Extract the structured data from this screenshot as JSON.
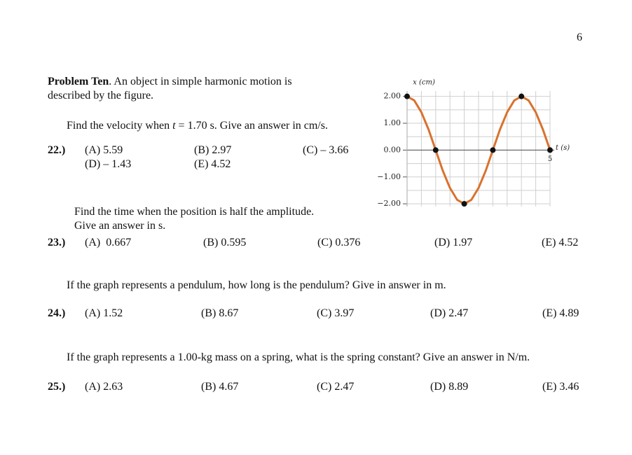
{
  "page_number": "6",
  "problem": {
    "title": "Problem Ten",
    "intro_lines": [
      ". An object in simple harmonic motion is",
      "described by the figure."
    ]
  },
  "figure": {
    "chart_data": {
      "type": "line",
      "x_label": "t (s)",
      "y_label": "x (cm)",
      "x": [
        0,
        0.25,
        0.5,
        0.75,
        1,
        1.25,
        1.5,
        1.75,
        2,
        2.25,
        2.5,
        2.75,
        3,
        3.25,
        3.5,
        3.75,
        4,
        4.25,
        4.5,
        4.75,
        5
      ],
      "series": [
        {
          "color": "#d9722e",
          "values": [
            2,
            1.85,
            1.41,
            0.77,
            0,
            -0.77,
            -1.41,
            -1.85,
            -2,
            -1.85,
            -1.41,
            -0.77,
            0,
            0.77,
            1.41,
            1.85,
            2,
            1.85,
            1.41,
            0.77,
            0
          ]
        }
      ],
      "markers": {
        "color": "#111111",
        "x": [
          0,
          1,
          2,
          3,
          4,
          5
        ],
        "values": [
          2,
          0,
          -2,
          0,
          2,
          0
        ]
      },
      "xlim": [
        0,
        5
      ],
      "ylim": [
        -2.1,
        2.2
      ],
      "xticks": [
        5
      ],
      "yticks": [
        {
          "value": 2,
          "label": "2.00"
        },
        {
          "value": 1,
          "label": "1.00"
        },
        {
          "value": 0,
          "label": "0.00"
        },
        {
          "value": -1,
          "label": "−1.00"
        },
        {
          "value": -2,
          "label": "−2.00"
        }
      ],
      "x_grid": [
        0,
        0.5,
        1,
        1.5,
        2,
        2.5,
        3,
        3.5,
        4,
        4.5,
        5
      ],
      "y_grid": [
        -2,
        -1.5,
        -1,
        -0.5,
        0.5,
        1,
        1.5,
        2
      ]
    }
  },
  "questions": [
    {
      "number": "22.)",
      "prompt_lines": [
        [
          "Find the velocity when ",
          "t",
          " = 1.70 s. Give an answer in cm/s."
        ]
      ],
      "choices": [
        "(A) 5.59",
        "(B) 2.97",
        "(C) – 3.66",
        "(D) – 1.43",
        "(E) 4.52"
      ]
    },
    {
      "number": "23.)",
      "prompt_lines": [
        [
          "Find the time when the position is half the amplitude."
        ],
        [
          "Give an answer in s."
        ]
      ],
      "choices": [
        "(A)  0.667",
        "(B) 0.595",
        "(C) 0.376",
        "(D) 1.97",
        "(E) 4.52"
      ]
    },
    {
      "number": "24.)",
      "prompt_lines": [
        [
          "If the graph represents a pendulum, how long is the pendulum? Give in answer in m."
        ]
      ],
      "choices": [
        "(A) 1.52",
        "(B) 8.67",
        "(C) 3.97",
        "(D) 2.47",
        "(E) 4.89"
      ]
    },
    {
      "number": "25.)",
      "prompt_lines": [
        [
          "If the graph represents a 1.00-kg mass on a spring, what is the spring constant? Give an answer in N/m."
        ]
      ],
      "choices": [
        "(A) 2.63",
        "(B) 4.67",
        "(C) 2.47",
        "(D) 8.89",
        "(E) 3.46"
      ]
    }
  ]
}
